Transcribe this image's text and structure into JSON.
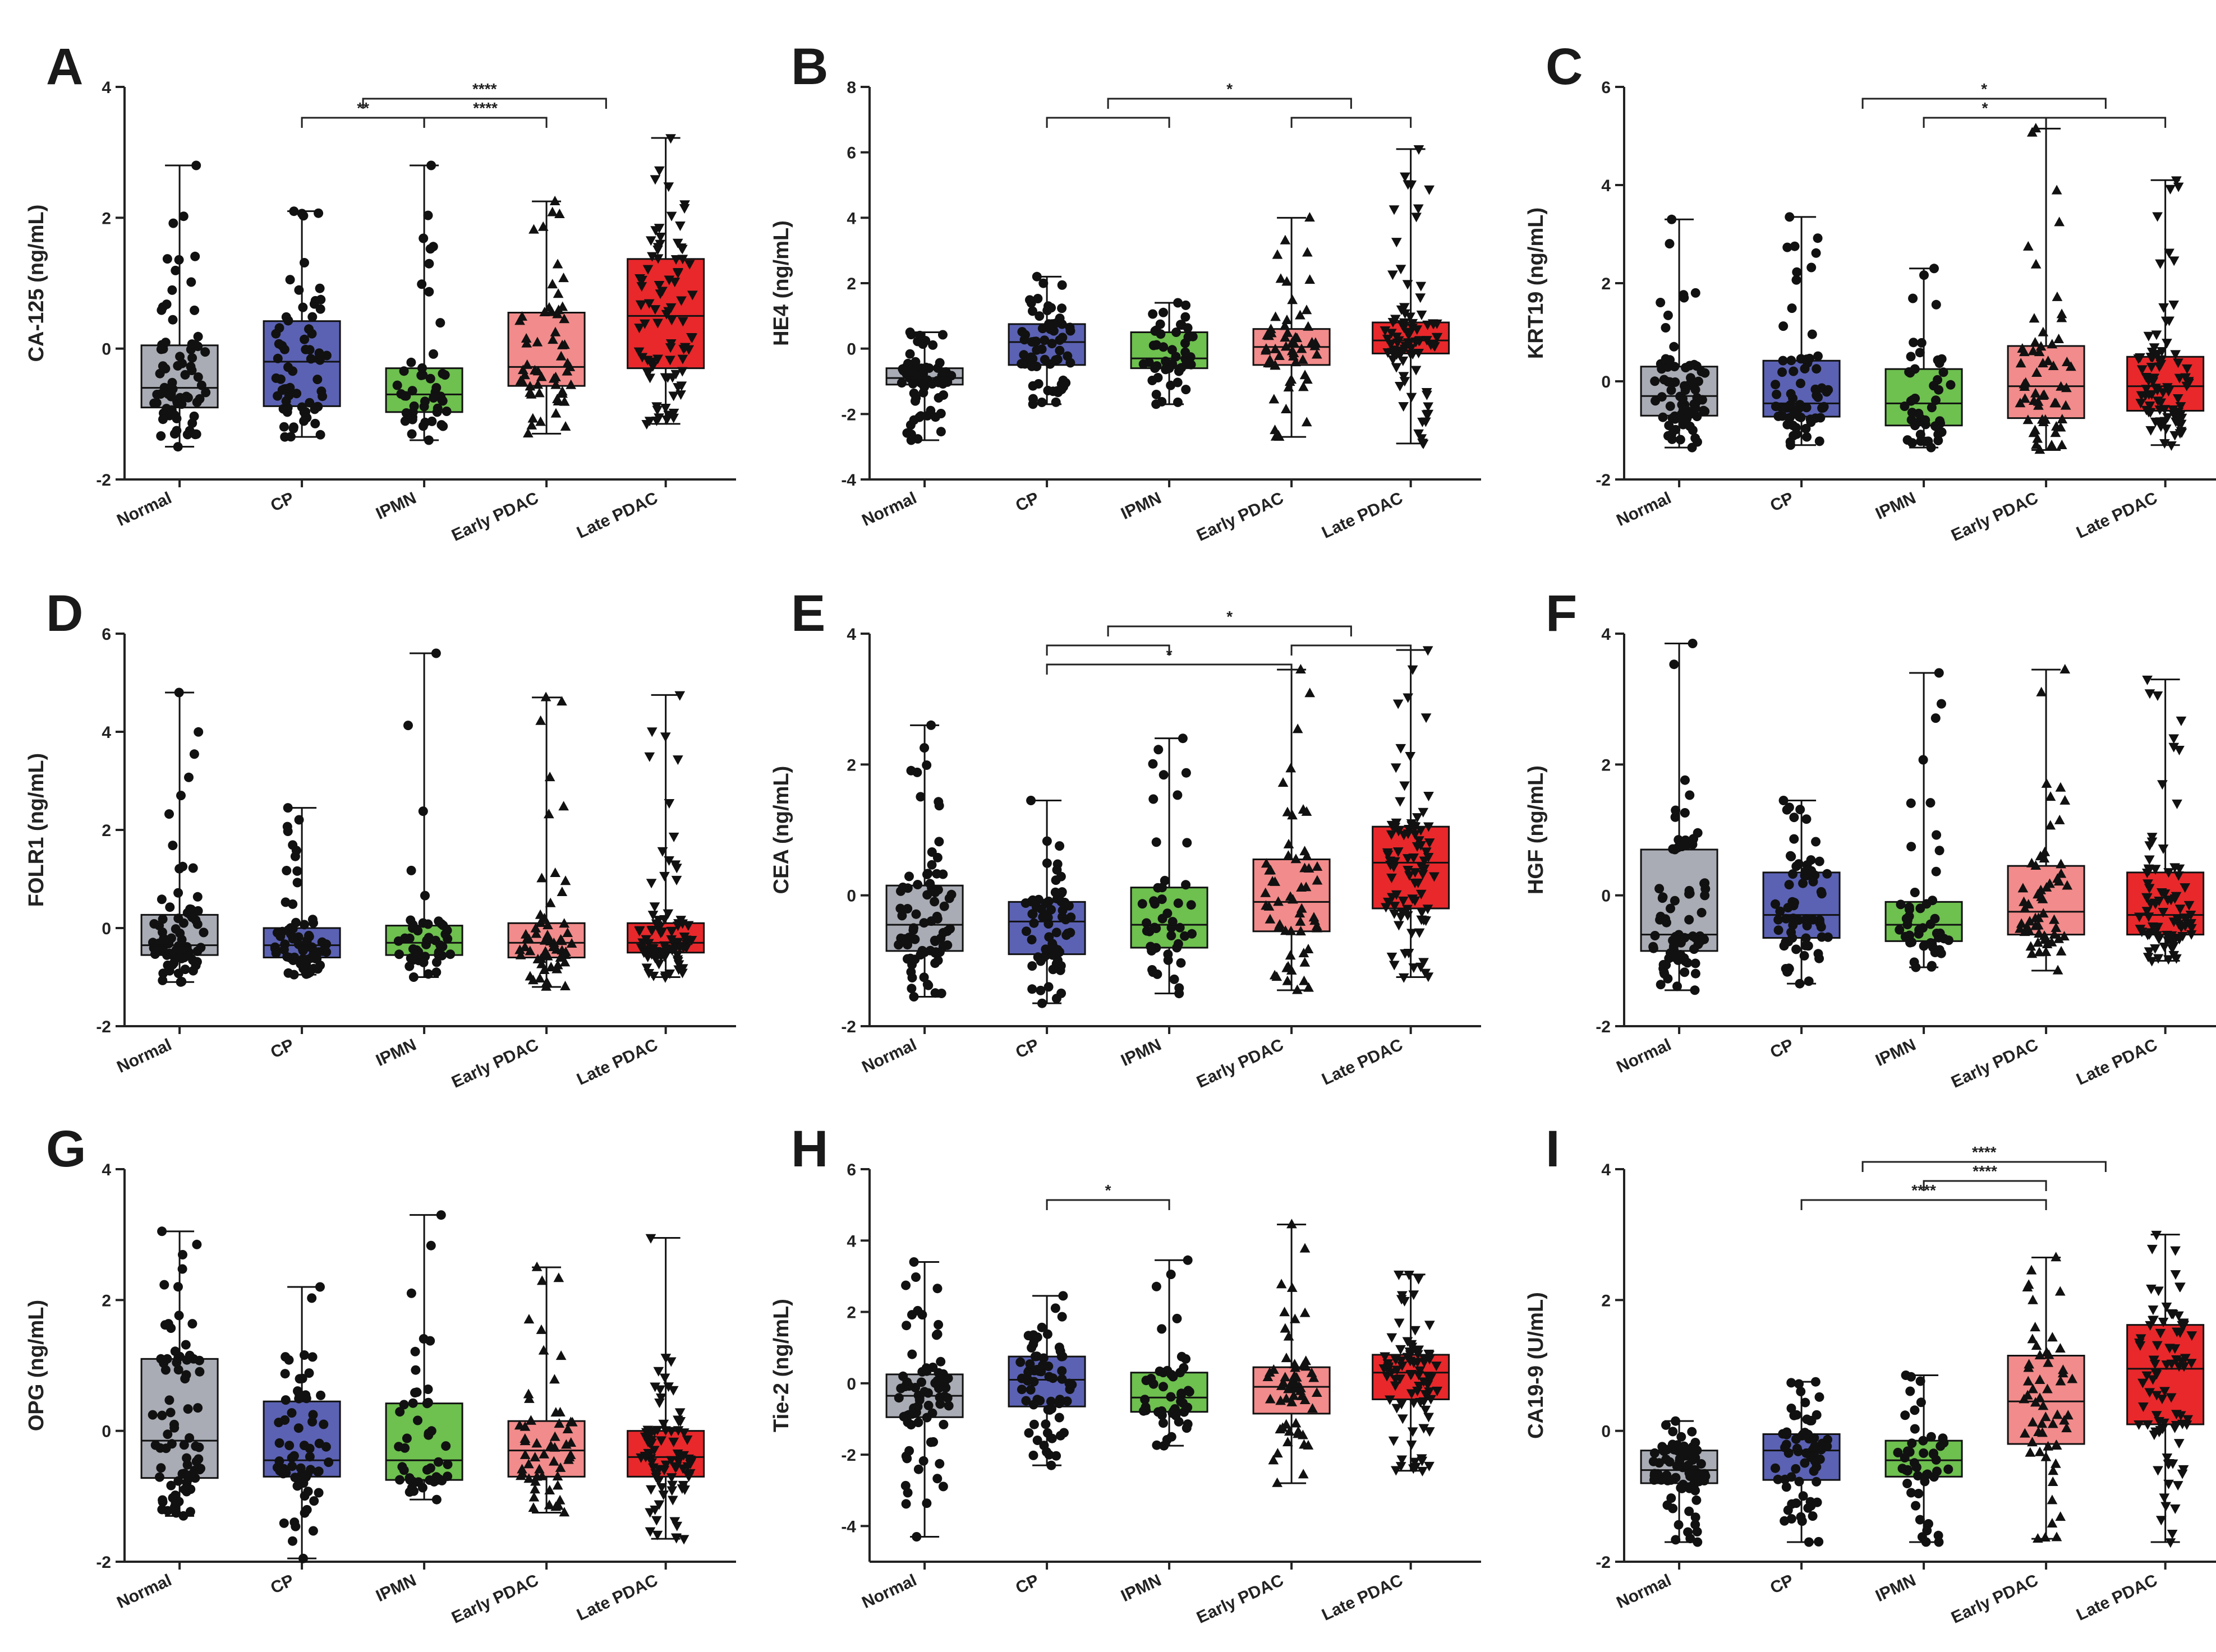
{
  "figure": {
    "groups": [
      "Normal",
      "CP",
      "IPMN",
      "Early PDAC",
      "Late PDAC"
    ],
    "group_colors": [
      "#a9acb4",
      "#5b62b4",
      "#6ec04f",
      "#f28b8b",
      "#e8282b"
    ],
    "marker_shapes": [
      "circle",
      "circle",
      "circle",
      "triangle-up",
      "triangle-down"
    ]
  },
  "chart_data": [
    {
      "panel": "A",
      "type": "box",
      "ylabel": "CA-125 (ng/mL)",
      "ylim": [
        -2,
        4
      ],
      "yticks": [
        -2,
        0,
        2,
        4
      ],
      "categories": [
        "Normal",
        "CP",
        "IPMN",
        "Early PDAC",
        "Late PDAC"
      ],
      "n": [
        75,
        65,
        45,
        55,
        85
      ],
      "boxes": [
        {
          "min": -1.5,
          "q1": -0.9,
          "median": -0.6,
          "q3": 0.05,
          "max": 2.8
        },
        {
          "min": -1.35,
          "q1": -0.88,
          "median": -0.2,
          "q3": 0.42,
          "max": 2.1
        },
        {
          "min": -1.4,
          "q1": -0.97,
          "median": -0.7,
          "q3": -0.3,
          "max": 2.8
        },
        {
          "min": -1.3,
          "q1": -0.57,
          "median": -0.28,
          "q3": 0.55,
          "max": 2.25
        },
        {
          "min": -1.15,
          "q1": -0.3,
          "median": 0.5,
          "q3": 1.37,
          "max": 3.22
        }
      ],
      "significance": [
        {
          "from": 1,
          "to": 2,
          "label": "**",
          "level": 1
        },
        {
          "from": 2,
          "to": 3,
          "label": "****",
          "level": 1
        },
        {
          "from": [
            1,
            2
          ],
          "to": [
            3,
            4
          ],
          "label": "****",
          "level": 2
        }
      ]
    },
    {
      "panel": "B",
      "type": "box",
      "ylabel": "HE4 (ng/mL)",
      "ylim": [
        -4,
        8
      ],
      "yticks": [
        -4,
        -2,
        0,
        2,
        4,
        6,
        8
      ],
      "categories": [
        "Normal",
        "CP",
        "IPMN",
        "Early PDAC",
        "Late PDAC"
      ],
      "n": [
        75,
        65,
        45,
        55,
        85
      ],
      "boxes": [
        {
          "min": -2.8,
          "q1": -1.1,
          "median": -0.9,
          "q3": -0.6,
          "max": 0.5
        },
        {
          "min": -1.7,
          "q1": -0.5,
          "median": 0.2,
          "q3": 0.75,
          "max": 2.2
        },
        {
          "min": -1.7,
          "q1": -0.6,
          "median": -0.3,
          "q3": 0.5,
          "max": 1.4
        },
        {
          "min": -2.7,
          "q1": -0.5,
          "median": 0.05,
          "q3": 0.6,
          "max": 4.0
        },
        {
          "min": -2.9,
          "q1": -0.15,
          "median": 0.25,
          "q3": 0.8,
          "max": 6.1
        }
      ],
      "significance": [
        {
          "from": 1,
          "to": 2,
          "label": "",
          "level": 1
        },
        {
          "from": 3,
          "to": 4,
          "label": "",
          "level": 1
        },
        {
          "from": [
            1,
            2
          ],
          "to": [
            3,
            4
          ],
          "label": "*",
          "level": 2
        }
      ]
    },
    {
      "panel": "C",
      "type": "box",
      "ylabel": "KRT19 (ng/mL)",
      "ylim": [
        -2,
        6
      ],
      "yticks": [
        -2,
        0,
        2,
        4,
        6
      ],
      "categories": [
        "Normal",
        "CP",
        "IPMN",
        "Early PDAC",
        "Late PDAC"
      ],
      "n": [
        75,
        65,
        45,
        55,
        85
      ],
      "boxes": [
        {
          "min": -1.35,
          "q1": -0.7,
          "median": -0.3,
          "q3": 0.3,
          "max": 3.3
        },
        {
          "min": -1.3,
          "q1": -0.72,
          "median": -0.45,
          "q3": 0.42,
          "max": 3.35
        },
        {
          "min": -1.35,
          "q1": -0.9,
          "median": -0.45,
          "q3": 0.25,
          "max": 2.3
        },
        {
          "min": -1.4,
          "q1": -0.75,
          "median": -0.1,
          "q3": 0.72,
          "max": 5.15
        },
        {
          "min": -1.3,
          "q1": -0.6,
          "median": -0.1,
          "q3": 0.5,
          "max": 4.1
        }
      ],
      "significance": [
        {
          "from": 2,
          "to": 3,
          "label": "*",
          "level": 1
        },
        {
          "from": 3,
          "to": 4,
          "label": "",
          "level": 1
        },
        {
          "from": [
            1,
            2
          ],
          "to": [
            3,
            4
          ],
          "label": "*",
          "level": 2
        }
      ]
    },
    {
      "panel": "D",
      "type": "box",
      "ylabel": "FOLR1 (ng/mL)",
      "ylim": [
        -2,
        6
      ],
      "yticks": [
        -2,
        0,
        2,
        4,
        6
      ],
      "categories": [
        "Normal",
        "CP",
        "IPMN",
        "Early PDAC",
        "Late PDAC"
      ],
      "n": [
        75,
        65,
        45,
        55,
        85
      ],
      "boxes": [
        {
          "min": -1.1,
          "q1": -0.55,
          "median": -0.35,
          "q3": 0.27,
          "max": 4.8
        },
        {
          "min": -0.95,
          "q1": -0.6,
          "median": -0.35,
          "q3": 0.0,
          "max": 2.45
        },
        {
          "min": -1.0,
          "q1": -0.55,
          "median": -0.3,
          "q3": 0.05,
          "max": 5.6
        },
        {
          "min": -1.2,
          "q1": -0.6,
          "median": -0.3,
          "q3": 0.1,
          "max": 4.7
        },
        {
          "min": -1.0,
          "q1": -0.5,
          "median": -0.3,
          "q3": 0.1,
          "max": 4.75
        }
      ],
      "significance": []
    },
    {
      "panel": "E",
      "type": "box",
      "ylabel": "CEA (ng/mL)",
      "ylim": [
        -2,
        4
      ],
      "yticks": [
        -2,
        0,
        2,
        4
      ],
      "categories": [
        "Normal",
        "CP",
        "IPMN",
        "Early PDAC",
        "Late PDAC"
      ],
      "n": [
        75,
        65,
        45,
        55,
        85
      ],
      "boxes": [
        {
          "min": -1.55,
          "q1": -0.85,
          "median": -0.45,
          "q3": 0.15,
          "max": 2.6
        },
        {
          "min": -1.65,
          "q1": -0.9,
          "median": -0.4,
          "q3": -0.1,
          "max": 1.45
        },
        {
          "min": -1.5,
          "q1": -0.8,
          "median": -0.45,
          "q3": 0.12,
          "max": 2.4
        },
        {
          "min": -1.45,
          "q1": -0.55,
          "median": -0.1,
          "q3": 0.55,
          "max": 3.45
        },
        {
          "min": -1.25,
          "q1": -0.2,
          "median": 0.5,
          "q3": 1.05,
          "max": 3.75
        }
      ],
      "significance": [
        {
          "from": 1,
          "to": 3,
          "label": "*",
          "level": 1
        },
        {
          "from": 1,
          "to": 2,
          "label": "",
          "level": 2
        },
        {
          "from": 3,
          "to": 4,
          "label": "",
          "level": 2
        },
        {
          "from": [
            1,
            2
          ],
          "to": [
            3,
            4
          ],
          "label": "*",
          "level": 3
        }
      ]
    },
    {
      "panel": "F",
      "type": "box",
      "ylabel": "HGF (ng/mL)",
      "ylim": [
        -2,
        4
      ],
      "yticks": [
        -2,
        0,
        2,
        4
      ],
      "categories": [
        "Normal",
        "CP",
        "IPMN",
        "Early PDAC",
        "Late PDAC"
      ],
      "n": [
        75,
        65,
        45,
        55,
        85
      ],
      "boxes": [
        {
          "min": -1.45,
          "q1": -0.85,
          "median": -0.6,
          "q3": 0.7,
          "max": 3.85
        },
        {
          "min": -1.35,
          "q1": -0.65,
          "median": -0.3,
          "q3": 0.35,
          "max": 1.45
        },
        {
          "min": -1.1,
          "q1": -0.7,
          "median": -0.45,
          "q3": -0.1,
          "max": 3.4
        },
        {
          "min": -1.15,
          "q1": -0.6,
          "median": -0.25,
          "q3": 0.45,
          "max": 3.45
        },
        {
          "min": -1.0,
          "q1": -0.6,
          "median": -0.3,
          "q3": 0.35,
          "max": 3.3
        }
      ],
      "significance": []
    },
    {
      "panel": "G",
      "type": "box",
      "ylabel": "OPG (ng/mL)",
      "ylim": [
        -2,
        4
      ],
      "yticks": [
        -2,
        0,
        2,
        4
      ],
      "categories": [
        "Normal",
        "CP",
        "IPMN",
        "Early PDAC",
        "Late PDAC"
      ],
      "n": [
        75,
        65,
        45,
        55,
        85
      ],
      "boxes": [
        {
          "min": -1.3,
          "q1": -0.72,
          "median": -0.15,
          "q3": 1.1,
          "max": 3.05
        },
        {
          "min": -1.95,
          "q1": -0.7,
          "median": -0.45,
          "q3": 0.45,
          "max": 2.2
        },
        {
          "min": -1.05,
          "q1": -0.75,
          "median": -0.45,
          "q3": 0.42,
          "max": 3.3
        },
        {
          "min": -1.25,
          "q1": -0.7,
          "median": -0.3,
          "q3": 0.15,
          "max": 2.5
        },
        {
          "min": -1.65,
          "q1": -0.7,
          "median": -0.4,
          "q3": 0.0,
          "max": 2.95
        }
      ],
      "significance": []
    },
    {
      "panel": "H",
      "type": "box",
      "ylabel": "Tie-2 (ng/mL)",
      "ylim": [
        -5,
        6
      ],
      "yticks": [
        -4,
        -2,
        0,
        2,
        4,
        6
      ],
      "categories": [
        "Normal",
        "CP",
        "IPMN",
        "Early PDAC",
        "Late PDAC"
      ],
      "n": [
        75,
        65,
        45,
        55,
        85
      ],
      "boxes": [
        {
          "min": -4.3,
          "q1": -0.95,
          "median": -0.35,
          "q3": 0.25,
          "max": 3.4
        },
        {
          "min": -2.3,
          "q1": -0.65,
          "median": 0.1,
          "q3": 0.75,
          "max": 2.45
        },
        {
          "min": -1.75,
          "q1": -0.8,
          "median": -0.4,
          "q3": 0.3,
          "max": 3.45
        },
        {
          "min": -2.8,
          "q1": -0.85,
          "median": -0.1,
          "q3": 0.45,
          "max": 4.45
        },
        {
          "min": -2.45,
          "q1": -0.45,
          "median": 0.3,
          "q3": 0.8,
          "max": 3.05
        }
      ],
      "significance": [
        {
          "from": 1,
          "to": 2,
          "label": "*",
          "level": 1
        }
      ]
    },
    {
      "panel": "I",
      "type": "box",
      "ylabel": "CA19-9 (U/mL)",
      "ylim": [
        -2,
        4
      ],
      "yticks": [
        -2,
        0,
        2,
        4
      ],
      "categories": [
        "Normal",
        "CP",
        "IPMN",
        "Early PDAC",
        "Late PDAC"
      ],
      "n": [
        75,
        65,
        45,
        55,
        85
      ],
      "boxes": [
        {
          "min": -1.7,
          "q1": -0.8,
          "median": -0.6,
          "q3": -0.3,
          "max": 0.15
        },
        {
          "min": -1.7,
          "q1": -0.75,
          "median": -0.3,
          "q3": -0.05,
          "max": 0.75
        },
        {
          "min": -1.7,
          "q1": -0.7,
          "median": -0.45,
          "q3": -0.15,
          "max": 0.85
        },
        {
          "min": -1.65,
          "q1": -0.2,
          "median": 0.45,
          "q3": 1.15,
          "max": 2.65
        },
        {
          "min": -1.7,
          "q1": 0.1,
          "median": 0.95,
          "q3": 1.62,
          "max": 3.0
        }
      ],
      "significance": [
        {
          "from": 1,
          "to": 3,
          "label": "****",
          "level": 1
        },
        {
          "from": 2,
          "to": 3,
          "label": "****",
          "level": 2
        },
        {
          "from": [
            1,
            2
          ],
          "to": [
            3,
            4
          ],
          "label": "****",
          "level": 3
        }
      ]
    }
  ]
}
